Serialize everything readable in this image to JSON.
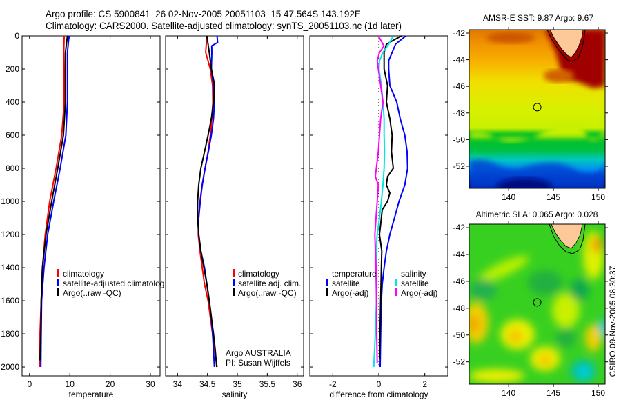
{
  "header": {
    "line1": "Argo profile: CS 5900841_26 02-Nov-2005 20051103_15 47.564S 143.192E",
    "line2": "Climatology: CARS2000. Satellite-adjusted climatology: synTS_20051103.nc (1d later)"
  },
  "credit": {
    "line1": "Argo AUSTRALIA",
    "line2": "PI: Susan Wijffels"
  },
  "timestamp": "CSIRO 09-Nov-2005 08:30:37",
  "chart_data": [
    {
      "type": "line",
      "xlabel": "temperature",
      "ylabel": "",
      "xlim": [
        -1.85,
        32.4
      ],
      "ylim": [
        2054,
        0
      ],
      "xticks": [
        "0",
        "10",
        "20",
        "30"
      ],
      "yticks": [
        "0",
        "200",
        "400",
        "600",
        "800",
        "1000",
        "1200",
        "1400",
        "1600",
        "1800",
        "2000"
      ],
      "series": [
        {
          "name": "climatology",
          "color": "#ff0000",
          "depth": [
            0,
            100,
            200,
            400,
            600,
            800,
            1000,
            1200,
            1400,
            1600,
            1800,
            2000
          ],
          "values": [
            8.6,
            8.5,
            8.6,
            8.6,
            8.0,
            6.6,
            5.0,
            3.9,
            3.2,
            2.9,
            2.6,
            2.5
          ]
        },
        {
          "name": "satellite-adjusted climatology",
          "color": "#0000ff",
          "depth": [
            0,
            100,
            200,
            400,
            600,
            800,
            1000,
            1200,
            1400,
            1600,
            1800,
            2000
          ],
          "values": [
            9.8,
            9.4,
            9.4,
            9.4,
            9.0,
            7.6,
            6.0,
            4.5,
            3.6,
            3.0,
            2.9,
            2.8
          ]
        },
        {
          "name": "Argo(..raw -QC)",
          "color": "#000000",
          "depth": [
            0,
            100,
            200,
            400,
            600,
            800,
            1000,
            1200,
            1400,
            1600,
            1800,
            1960
          ],
          "values": [
            9.4,
            8.9,
            8.9,
            8.9,
            8.4,
            7.0,
            5.5,
            4.1,
            3.2,
            2.9,
            2.8,
            2.6
          ]
        }
      ]
    },
    {
      "type": "line",
      "xlabel": "salinity",
      "ylabel": "",
      "xlim": [
        33.8,
        36.107
      ],
      "ylim": [
        2054,
        0
      ],
      "xticks": [
        "34",
        "34.5",
        "35",
        "35.5",
        "36"
      ],
      "series": [
        {
          "name": "climatology",
          "color": "#ff0000",
          "depth": [
            0,
            100,
            200,
            300,
            400,
            500,
            600,
            700,
            800,
            900,
            1000,
            1100,
            1200,
            1300,
            1400,
            1500,
            1600,
            1700,
            1800,
            1900,
            2000
          ],
          "values": [
            34.49,
            34.47,
            34.547,
            34.585,
            34.59,
            34.573,
            34.547,
            34.51,
            34.46,
            34.412,
            34.374,
            34.354,
            34.346,
            34.374,
            34.412,
            34.45,
            34.51,
            34.547,
            34.585,
            34.62,
            34.66
          ]
        },
        {
          "name": "satellite adj. clim.",
          "color": "#0000ff",
          "depth": [
            0,
            40,
            60,
            100,
            200,
            300,
            400,
            500,
            600,
            700,
            800,
            900,
            1000,
            1100,
            1200,
            1300,
            1400,
            1500,
            1600,
            1700,
            1800,
            1900,
            2000
          ],
          "values": [
            34.66,
            34.67,
            34.57,
            34.573,
            34.565,
            34.6,
            34.615,
            34.6,
            34.565,
            34.515,
            34.46,
            34.412,
            34.38,
            34.354,
            34.354,
            34.39,
            34.45,
            34.49,
            34.53,
            34.565,
            34.585,
            34.6,
            34.615
          ]
        },
        {
          "name": "Argo(..raw -QC)",
          "color": "#000000",
          "depth": [
            0,
            100,
            200,
            300,
            400,
            500,
            600,
            700,
            800,
            900,
            1000,
            1100,
            1200,
            1300,
            1400,
            1500,
            1600,
            1700,
            1800,
            1900,
            2000
          ],
          "values": [
            34.49,
            34.53,
            34.565,
            34.62,
            34.6,
            34.565,
            34.51,
            34.45,
            34.39,
            34.354,
            34.335,
            34.335,
            34.354,
            34.39,
            34.44,
            34.49,
            34.53,
            34.565,
            34.6,
            34.63,
            34.654
          ]
        }
      ]
    },
    {
      "type": "line",
      "xlabel": "difference from climatology",
      "ylabel": "",
      "xlim": [
        -3,
        3
      ],
      "ylim": [
        2054,
        0
      ],
      "xticks": [
        "-2",
        "0",
        "2"
      ],
      "legend_groups": [
        "temperature",
        "salinity"
      ],
      "series": [
        {
          "name": "satellite",
          "group": "temperature",
          "color": "#0000ff",
          "depth": [
            0,
            50,
            100,
            150,
            200,
            300,
            400,
            500,
            600,
            700,
            800,
            900,
            1000,
            1100,
            1200,
            1300,
            1400,
            1500,
            1600,
            1800,
            2000
          ],
          "values": [
            1.18,
            0.73,
            0.58,
            0.43,
            0.43,
            0.48,
            0.78,
            0.93,
            1.13,
            1.23,
            1.25,
            1.13,
            0.88,
            0.68,
            0.48,
            0.33,
            0.23,
            0.15,
            0.11,
            0.08,
            0.06
          ]
        },
        {
          "name": "Argo(-adj)",
          "group": "temperature",
          "color": "#000000",
          "depth": [
            0,
            50,
            100,
            200,
            300,
            400,
            500,
            600,
            700,
            800,
            850,
            900,
            950,
            1000,
            1050,
            1100,
            1200,
            1300,
            1400,
            1600,
            1950
          ],
          "values": [
            0.98,
            0.33,
            0.23,
            0.23,
            0.38,
            0.33,
            0.48,
            0.58,
            0.55,
            0.63,
            0.38,
            0.33,
            0.48,
            0.38,
            0.15,
            0.11,
            0.03,
            0.13,
            0.11,
            0.08,
            0.03
          ]
        },
        {
          "name": "satellite",
          "group": "salinity",
          "color": "#00e5e5",
          "depth": [
            0,
            50,
            100,
            150,
            200,
            300,
            400,
            500,
            600,
            700,
            800,
            900,
            1000,
            1100,
            1200,
            1300,
            1400,
            1600,
            1800,
            2000
          ],
          "values": [
            0.63,
            0.43,
            0.18,
            0.03,
            0.01,
            0.11,
            0.18,
            0.23,
            0.23,
            0.25,
            0.23,
            0.18,
            0.11,
            0.03,
            -0.07,
            -0.12,
            -0.12,
            -0.1,
            -0.15,
            -0.22
          ]
        },
        {
          "name": "Argo(-adj)",
          "group": "salinity",
          "color": "#ff00ff",
          "depth": [
            0,
            50,
            60,
            100,
            150,
            200,
            300,
            400,
            500,
            600,
            700,
            850,
            900,
            1000,
            1100,
            1200,
            1300,
            1400,
            1600,
            1800,
            1980
          ],
          "values": [
            -0.02,
            0.18,
            0.23,
            0.03,
            -0.07,
            -0.02,
            0.08,
            0.18,
            0.08,
            0.03,
            -0.02,
            -0.15,
            -0.02,
            -0.07,
            -0.12,
            -0.17,
            -0.15,
            -0.12,
            -0.1,
            -0.09,
            -0.07
          ]
        }
      ]
    },
    {
      "type": "heatmap",
      "title": "AMSR-E SST: 9.87 Argo: 9.67",
      "xlim": [
        135.6,
        150.77
      ],
      "ylim": [
        -53.66,
        -41.74
      ],
      "xticks": [
        "140",
        "145",
        "150"
      ],
      "yticks": [
        "-42",
        "-44",
        "-46",
        "-48",
        "-50",
        "-52"
      ],
      "marker": {
        "lon": 143.192,
        "lat": -47.564
      }
    },
    {
      "type": "heatmap",
      "title": "Altimetric SLA: 0.065 Argo: 0.028",
      "xlim": [
        135.6,
        150.77
      ],
      "ylim": [
        -53.66,
        -41.74
      ],
      "xticks": [
        "140",
        "145",
        "150"
      ],
      "yticks": [
        "-42",
        "-44",
        "-46",
        "-48",
        "-50",
        "-52"
      ],
      "marker": {
        "lon": 143.192,
        "lat": -47.564
      }
    }
  ]
}
